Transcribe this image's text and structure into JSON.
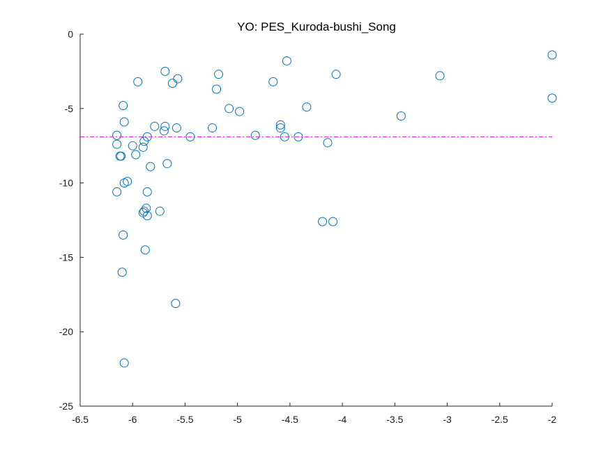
{
  "chart_data": {
    "type": "scatter",
    "title": "YO: PES_Kuroda-bushi_Song",
    "xlabel": "",
    "ylabel": "",
    "xlim": [
      -6.5,
      -2
    ],
    "ylim": [
      -25,
      0
    ],
    "xticks": [
      "-6.5",
      "-6",
      "-5.5",
      "-5",
      "-4.5",
      "-4",
      "-3.5",
      "-3",
      "-2.5",
      "-2"
    ],
    "yticks": [
      "0",
      "-5",
      "-10",
      "-15",
      "-20",
      "-25"
    ],
    "grid": false,
    "marker_color": "#0072BD",
    "reference_line": {
      "y": -6.9,
      "style": "dash-dot",
      "color": "#FF00FF"
    },
    "points": [
      {
        "x": -6.15,
        "y": -6.8
      },
      {
        "x": -6.15,
        "y": -7.4
      },
      {
        "x": -6.12,
        "y": -8.2
      },
      {
        "x": -6.11,
        "y": -8.2
      },
      {
        "x": -6.09,
        "y": -4.8
      },
      {
        "x": -6.08,
        "y": -5.9
      },
      {
        "x": -6.15,
        "y": -10.6
      },
      {
        "x": -6.08,
        "y": -10.0
      },
      {
        "x": -6.05,
        "y": -9.9
      },
      {
        "x": -6.09,
        "y": -13.5
      },
      {
        "x": -6.1,
        "y": -16.0
      },
      {
        "x": -6.08,
        "y": -22.1
      },
      {
        "x": -6.0,
        "y": -7.5
      },
      {
        "x": -5.97,
        "y": -8.1
      },
      {
        "x": -5.95,
        "y": -3.2
      },
      {
        "x": -5.9,
        "y": -7.6
      },
      {
        "x": -5.89,
        "y": -7.2
      },
      {
        "x": -5.86,
        "y": -6.9
      },
      {
        "x": -5.83,
        "y": -8.9
      },
      {
        "x": -5.86,
        "y": -10.6
      },
      {
        "x": -5.87,
        "y": -11.7
      },
      {
        "x": -5.89,
        "y": -11.9
      },
      {
        "x": -5.9,
        "y": -12.0
      },
      {
        "x": -5.86,
        "y": -12.2
      },
      {
        "x": -5.88,
        "y": -14.5
      },
      {
        "x": -5.79,
        "y": -6.2
      },
      {
        "x": -5.74,
        "y": -11.9
      },
      {
        "x": -5.69,
        "y": -6.2
      },
      {
        "x": -5.7,
        "y": -6.5
      },
      {
        "x": -5.67,
        "y": -8.7
      },
      {
        "x": -5.69,
        "y": -2.5
      },
      {
        "x": -5.62,
        "y": -3.3
      },
      {
        "x": -5.57,
        "y": -3.0
      },
      {
        "x": -5.58,
        "y": -6.3
      },
      {
        "x": -5.59,
        "y": -18.1
      },
      {
        "x": -5.45,
        "y": -6.9
      },
      {
        "x": -5.24,
        "y": -6.3
      },
      {
        "x": -5.2,
        "y": -3.7
      },
      {
        "x": -5.18,
        "y": -2.7
      },
      {
        "x": -5.08,
        "y": -5.0
      },
      {
        "x": -4.98,
        "y": -5.2
      },
      {
        "x": -4.83,
        "y": -6.8
      },
      {
        "x": -4.66,
        "y": -3.2
      },
      {
        "x": -4.59,
        "y": -6.1
      },
      {
        "x": -4.59,
        "y": -6.3
      },
      {
        "x": -4.55,
        "y": -6.9
      },
      {
        "x": -4.53,
        "y": -1.8
      },
      {
        "x": -4.42,
        "y": -6.9
      },
      {
        "x": -4.34,
        "y": -4.9
      },
      {
        "x": -4.19,
        "y": -12.6
      },
      {
        "x": -4.14,
        "y": -7.3
      },
      {
        "x": -4.09,
        "y": -12.6
      },
      {
        "x": -4.06,
        "y": -2.7
      },
      {
        "x": -3.44,
        "y": -5.5
      },
      {
        "x": -3.07,
        "y": -2.8
      },
      {
        "x": -2.0,
        "y": -1.4
      },
      {
        "x": -2.0,
        "y": -4.3
      }
    ]
  }
}
